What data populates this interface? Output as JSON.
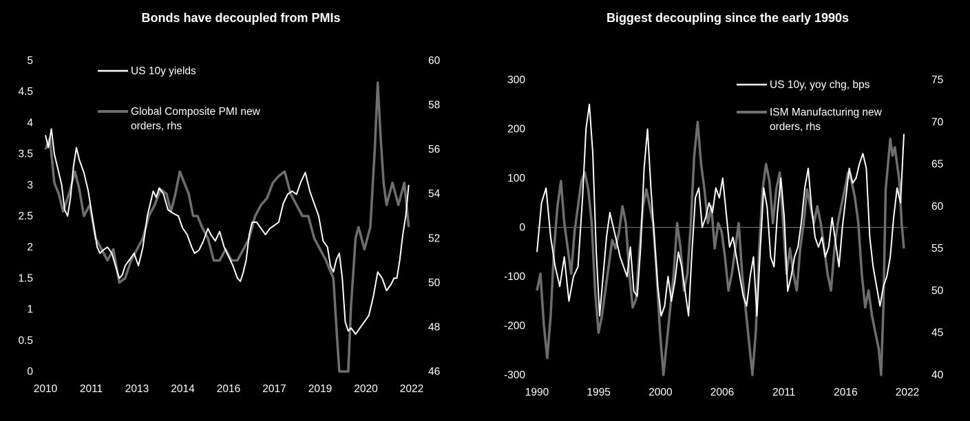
{
  "chart_data": [
    {
      "type": "line",
      "title": "Bonds have decoupled from PMIs",
      "x_tick_labels": [
        "2010",
        "2011",
        "2013",
        "2014",
        "2016",
        "2017",
        "2019",
        "2020",
        "2022"
      ],
      "y_left_ticks": [
        "0",
        "0.5",
        "1",
        "1.5",
        "2",
        "2.5",
        "3",
        "3.5",
        "4",
        "4.5",
        "5"
      ],
      "y_right_ticks": [
        "46",
        "48",
        "50",
        "52",
        "54",
        "56",
        "58",
        "60"
      ],
      "ylim": [
        0,
        5
      ],
      "ylim_right": [
        46,
        60
      ],
      "xlim": [
        2010.0,
        2022.4
      ],
      "grid": false,
      "legend_position": "top-left",
      "series": [
        {
          "name": "US 10y yields",
          "axis": "left",
          "color": "#ffffff",
          "x": [
            2010.0,
            2010.1,
            2010.2,
            2010.3,
            2010.45,
            2010.55,
            2010.65,
            2010.75,
            2010.85,
            2010.95,
            2011.05,
            2011.15,
            2011.3,
            2011.45,
            2011.55,
            2011.65,
            2011.75,
            2011.85,
            2011.95,
            2012.1,
            2012.25,
            2012.4,
            2012.5,
            2012.6,
            2012.7,
            2012.85,
            2013.0,
            2013.15,
            2013.3,
            2013.45,
            2013.55,
            2013.65,
            2013.75,
            2013.85,
            2014.0,
            2014.15,
            2014.3,
            2014.5,
            2014.65,
            2014.8,
            2014.95,
            2015.05,
            2015.2,
            2015.35,
            2015.5,
            2015.6,
            2015.75,
            2015.9,
            2016.05,
            2016.2,
            2016.35,
            2016.5,
            2016.6,
            2016.7,
            2016.8,
            2016.9,
            2017.0,
            2017.15,
            2017.3,
            2017.45,
            2017.6,
            2017.75,
            2017.9,
            2018.05,
            2018.2,
            2018.35,
            2018.5,
            2018.65,
            2018.8,
            2018.95,
            2019.1,
            2019.25,
            2019.4,
            2019.55,
            2019.65,
            2019.75,
            2019.85,
            2019.95,
            2020.05,
            2020.15,
            2020.25,
            2020.35,
            2020.5,
            2020.65,
            2020.8,
            2020.95,
            2021.1,
            2021.25,
            2021.4,
            2021.55,
            2021.7,
            2021.8,
            2021.9,
            2022.0,
            2022.1,
            2022.2,
            2022.3
          ],
          "y": [
            3.8,
            3.6,
            3.9,
            3.5,
            3.2,
            3.0,
            2.6,
            2.5,
            2.8,
            3.3,
            3.6,
            3.4,
            3.2,
            2.9,
            2.6,
            2.3,
            2.0,
            1.9,
            1.95,
            2.0,
            1.9,
            1.65,
            1.5,
            1.55,
            1.7,
            1.8,
            1.9,
            1.7,
            2.0,
            2.5,
            2.7,
            2.9,
            2.8,
            2.95,
            2.85,
            2.6,
            2.55,
            2.5,
            2.3,
            2.2,
            2.0,
            1.9,
            1.95,
            2.1,
            2.3,
            2.2,
            2.1,
            2.25,
            2.0,
            1.85,
            1.7,
            1.5,
            1.45,
            1.6,
            1.8,
            2.2,
            2.4,
            2.4,
            2.3,
            2.2,
            2.3,
            2.35,
            2.4,
            2.7,
            2.85,
            2.9,
            2.85,
            3.05,
            3.2,
            2.9,
            2.7,
            2.5,
            2.1,
            2.0,
            1.7,
            1.6,
            1.8,
            1.9,
            1.5,
            0.8,
            0.65,
            0.7,
            0.6,
            0.7,
            0.8,
            0.9,
            1.2,
            1.6,
            1.5,
            1.3,
            1.4,
            1.5,
            1.5,
            1.8,
            2.2,
            2.5,
            3.0
          ]
        },
        {
          "name": "Global Composite PMI new orders, rhs",
          "axis": "right",
          "color": "#6e6e6e",
          "x": [
            2010.0,
            2010.15,
            2010.3,
            2010.45,
            2010.6,
            2010.8,
            2011.0,
            2011.15,
            2011.3,
            2011.5,
            2011.7,
            2011.9,
            2012.1,
            2012.3,
            2012.5,
            2012.7,
            2012.9,
            2013.1,
            2013.3,
            2013.5,
            2013.7,
            2013.9,
            2014.1,
            2014.25,
            2014.4,
            2014.55,
            2014.7,
            2014.85,
            2015.0,
            2015.15,
            2015.3,
            2015.5,
            2015.7,
            2015.9,
            2016.1,
            2016.3,
            2016.5,
            2016.7,
            2016.9,
            2017.1,
            2017.3,
            2017.5,
            2017.7,
            2017.9,
            2018.1,
            2018.3,
            2018.5,
            2018.7,
            2018.9,
            2019.1,
            2019.3,
            2019.5,
            2019.65,
            2019.75,
            2019.85,
            2019.95,
            2020.05,
            2020.15,
            2020.25,
            2020.35,
            2020.5,
            2020.6,
            2020.7,
            2020.8,
            2020.9,
            2021.0,
            2021.15,
            2021.25,
            2021.35,
            2021.45,
            2021.55,
            2021.65,
            2021.75,
            2021.85,
            2021.95,
            2022.05,
            2022.15,
            2022.3
          ],
          "y": [
            56.0,
            56.5,
            54.5,
            54.0,
            53.2,
            54.0,
            55.0,
            54.2,
            53.0,
            53.5,
            52.0,
            51.5,
            51.0,
            51.5,
            50.0,
            50.2,
            51.0,
            51.5,
            52.0,
            53.0,
            53.5,
            54.2,
            54.0,
            53.2,
            54.0,
            55.0,
            54.5,
            54.0,
            53.0,
            53.0,
            52.5,
            52.0,
            51.0,
            51.0,
            51.5,
            51.0,
            51.0,
            51.5,
            52.0,
            53.0,
            53.5,
            53.8,
            54.5,
            54.8,
            55.0,
            54.0,
            53.5,
            53.0,
            53.0,
            52.0,
            51.5,
            51.0,
            50.5,
            50.2,
            48.0,
            45.0,
            46.0,
            44.0,
            45.0,
            49.0,
            52.0,
            52.5,
            52.0,
            51.5,
            52.0,
            52.5,
            56.0,
            59.0,
            56.5,
            54.5,
            53.5,
            54.0,
            54.5,
            54.0,
            53.5,
            54.0,
            54.5,
            52.5
          ]
        }
      ]
    },
    {
      "type": "line",
      "title": "Biggest decoupling since the early 1990s",
      "x_tick_labels": [
        "1990",
        "1995",
        "2000",
        "2006",
        "2011",
        "2016",
        "2022"
      ],
      "y_left_ticks": [
        "-300",
        "-200",
        "-100",
        "0",
        "100",
        "200",
        "300"
      ],
      "y_right_ticks": [
        "40",
        "45",
        "50",
        "55",
        "60",
        "65",
        "70",
        "75"
      ],
      "ylim": [
        -300,
        300
      ],
      "ylim_right": [
        40,
        75
      ],
      "xlim": [
        1990.0,
        2022.5
      ],
      "grid": false,
      "legend_position": "top-right",
      "series": [
        {
          "name": "US 10y, yoy chg, bps",
          "axis": "left",
          "color": "#ffffff",
          "x": [
            1990.0,
            1990.4,
            1990.8,
            1991.2,
            1991.6,
            1992.0,
            1992.4,
            1992.8,
            1993.2,
            1993.6,
            1994.0,
            1994.3,
            1994.6,
            1994.9,
            1995.2,
            1995.5,
            1995.8,
            1996.1,
            1996.4,
            1996.7,
            1997.0,
            1997.3,
            1997.6,
            1997.9,
            1998.2,
            1998.5,
            1998.8,
            1999.1,
            1999.4,
            1999.7,
            2000.0,
            2000.3,
            2000.6,
            2000.9,
            2001.2,
            2001.5,
            2001.8,
            2002.1,
            2002.4,
            2002.7,
            2003.0,
            2003.3,
            2003.6,
            2003.9,
            2004.2,
            2004.5,
            2004.8,
            2005.1,
            2005.4,
            2005.7,
            2006.0,
            2006.3,
            2006.6,
            2006.9,
            2007.2,
            2007.5,
            2007.8,
            2008.1,
            2008.4,
            2008.7,
            2009.0,
            2009.3,
            2009.6,
            2009.9,
            2010.2,
            2010.5,
            2010.8,
            2011.1,
            2011.4,
            2011.7,
            2012.0,
            2012.3,
            2012.6,
            2012.9,
            2013.2,
            2013.5,
            2013.8,
            2014.1,
            2014.4,
            2014.7,
            2015.0,
            2015.3,
            2015.6,
            2015.9,
            2016.2,
            2016.5,
            2016.8,
            2017.1,
            2017.4,
            2017.7,
            2018.0,
            2018.3,
            2018.6,
            2018.9,
            2019.2,
            2019.5,
            2019.8,
            2020.1,
            2020.4,
            2020.7,
            2021.0,
            2021.3,
            2021.6,
            2021.9,
            2022.2
          ],
          "y": [
            -50,
            50,
            80,
            -20,
            -80,
            -120,
            -60,
            -150,
            -100,
            -80,
            60,
            200,
            250,
            150,
            -50,
            -180,
            -100,
            -20,
            30,
            0,
            -30,
            -60,
            -80,
            -100,
            -40,
            -130,
            -140,
            -40,
            120,
            200,
            80,
            -20,
            -120,
            -180,
            -160,
            -100,
            -150,
            -110,
            -50,
            -80,
            -130,
            -180,
            -50,
            60,
            80,
            0,
            20,
            50,
            30,
            80,
            60,
            100,
            30,
            -40,
            -20,
            -60,
            -100,
            -140,
            -160,
            -100,
            -60,
            -180,
            -40,
            80,
            40,
            -60,
            -80,
            30,
            100,
            20,
            -130,
            -100,
            -60,
            -40,
            10,
            80,
            120,
            40,
            -20,
            -40,
            -20,
            -60,
            -40,
            20,
            -30,
            -80,
            0,
            60,
            120,
            90,
            100,
            130,
            150,
            120,
            -20,
            -80,
            -120,
            -160,
            -120,
            -100,
            -60,
            20,
            80,
            50,
            190
          ]
        },
        {
          "name": "ISM Manufacturing new orders, rhs",
          "axis": "right",
          "color": "#6e6e6e",
          "x": [
            1990.0,
            1990.3,
            1990.6,
            1990.9,
            1991.2,
            1991.5,
            1991.8,
            1992.1,
            1992.4,
            1992.7,
            1993.0,
            1993.3,
            1993.6,
            1993.9,
            1994.2,
            1994.5,
            1994.8,
            1995.1,
            1995.4,
            1995.7,
            1996.0,
            1996.3,
            1996.6,
            1996.9,
            1997.2,
            1997.5,
            1997.8,
            1998.1,
            1998.4,
            1998.7,
            1999.0,
            1999.3,
            1999.6,
            1999.9,
            2000.2,
            2000.5,
            2000.8,
            2001.1,
            2001.4,
            2001.7,
            2002.0,
            2002.3,
            2002.6,
            2002.9,
            2003.2,
            2003.5,
            2003.8,
            2004.1,
            2004.4,
            2004.7,
            2005.0,
            2005.3,
            2005.6,
            2005.9,
            2006.2,
            2006.5,
            2006.8,
            2007.1,
            2007.4,
            2007.7,
            2008.0,
            2008.3,
            2008.6,
            2008.9,
            2009.2,
            2009.5,
            2009.8,
            2010.1,
            2010.4,
            2010.7,
            2011.0,
            2011.3,
            2011.6,
            2011.9,
            2012.2,
            2012.5,
            2012.8,
            2013.1,
            2013.4,
            2013.7,
            2014.0,
            2014.3,
            2014.6,
            2014.9,
            2015.2,
            2015.5,
            2015.8,
            2016.1,
            2016.4,
            2016.7,
            2017.0,
            2017.3,
            2017.6,
            2017.9,
            2018.2,
            2018.5,
            2018.8,
            2019.1,
            2019.4,
            2019.7,
            2020.0,
            2020.2,
            2020.4,
            2020.6,
            2020.8,
            2021.0,
            2021.2,
            2021.4,
            2021.6,
            2021.8,
            2022.0,
            2022.2
          ],
          "y": [
            50,
            52,
            46,
            42,
            47,
            55,
            60,
            63,
            58,
            55,
            52,
            57,
            60,
            63,
            64,
            62,
            58,
            50,
            45,
            47,
            50,
            53,
            56,
            55,
            57,
            60,
            58,
            52,
            48,
            49,
            55,
            60,
            62,
            60,
            58,
            52,
            45,
            40,
            44,
            48,
            52,
            58,
            55,
            50,
            52,
            58,
            66,
            70,
            65,
            62,
            58,
            60,
            55,
            58,
            57,
            54,
            50,
            52,
            55,
            58,
            52,
            48,
            44,
            38,
            45,
            55,
            62,
            65,
            63,
            58,
            62,
            64,
            58,
            52,
            55,
            52,
            50,
            55,
            58,
            62,
            60,
            58,
            60,
            58,
            55,
            52,
            50,
            55,
            58,
            60,
            62,
            64,
            63,
            61,
            58,
            52,
            48,
            50,
            47,
            45,
            43,
            40,
            48,
            62,
            65,
            68,
            66,
            67,
            65,
            63,
            58,
            55
          ]
        }
      ]
    }
  ]
}
